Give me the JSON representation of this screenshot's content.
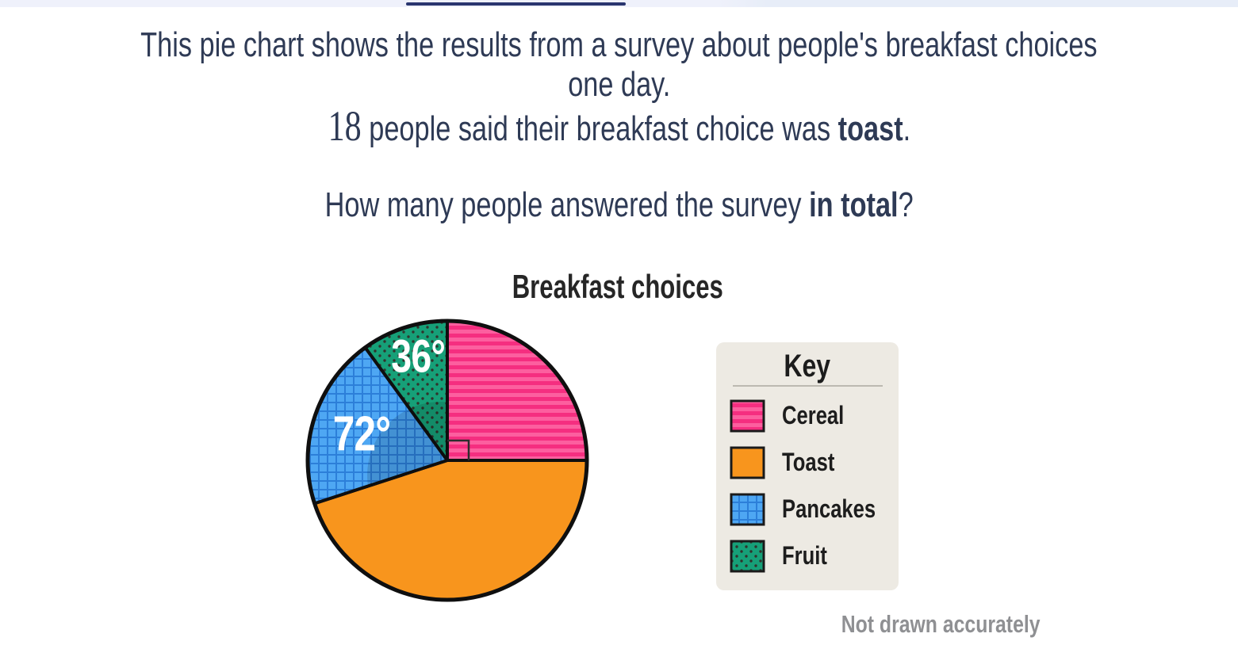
{
  "top_bar": {
    "accent_line_color": "#29356f"
  },
  "question": {
    "line1": "This pie chart shows the results from a survey about people's breakfast choices",
    "line2": "one day.",
    "given_number": "18",
    "line3_mid": " people said their breakfast choice was ",
    "line3_bold": "toast",
    "line3_end": ".",
    "line4_start": "How many people answered the survey ",
    "line4_bold": "in total",
    "line4_end": "?"
  },
  "chart_data": {
    "type": "pie",
    "title": "Breakfast choices",
    "footnote": "Not drawn accurately",
    "rotation_start_deg": 0,
    "direction": "clockwise",
    "slices": [
      {
        "label": "Cereal",
        "angle_deg": 90,
        "data_label": "",
        "pattern": "horizontal-stripes",
        "annotation": "right-angle-marker",
        "colors": {
          "light": "#fc5f9f",
          "dark": "#f52e80"
        }
      },
      {
        "label": "Toast",
        "angle_deg": 162,
        "data_label": "",
        "pattern": "solid",
        "colors": {
          "base": "#f8951d"
        }
      },
      {
        "label": "Pancakes",
        "angle_deg": 72,
        "data_label": "72°",
        "pattern": "grid",
        "colors": {
          "base": "#4ea7f3",
          "line": "#2c7fd9"
        }
      },
      {
        "label": "Fruit",
        "angle_deg": 36,
        "data_label": "36°",
        "pattern": "dots",
        "colors": {
          "base": "#16a078",
          "dot": "#30342c"
        }
      }
    ],
    "key": {
      "title": "Key",
      "entries": [
        "Cereal",
        "Toast",
        "Pancakes",
        "Fruit"
      ]
    }
  },
  "colors": {
    "question_text": "#2e3a55",
    "chart_text": "#262626",
    "footnote_text": "#8f9093",
    "key_background": "#edeae3",
    "pie_outline": "#0f0f0f",
    "angle_label_text": "#ffffff"
  }
}
